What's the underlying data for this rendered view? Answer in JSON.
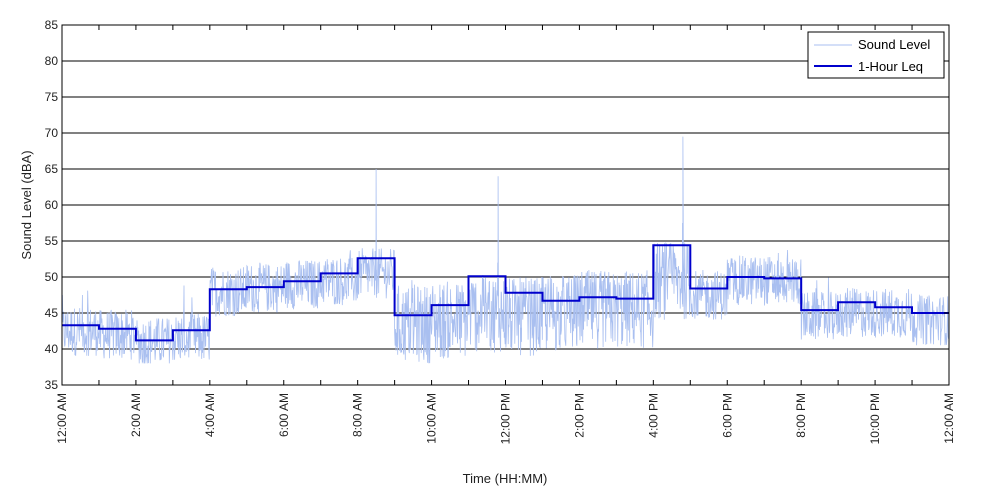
{
  "chart_data": {
    "type": "line",
    "title": "",
    "xlabel": "Time (HH:MM)",
    "ylabel": "Sound Level (dBA)",
    "ylim": [
      35,
      85
    ],
    "xlim_hours": [
      0,
      24
    ],
    "yticks": [
      35,
      40,
      45,
      50,
      55,
      60,
      65,
      70,
      75,
      80,
      85
    ],
    "xtick_labels": [
      "12:00 AM",
      "2:00 AM",
      "4:00 AM",
      "6:00 AM",
      "8:00 AM",
      "10:00 AM",
      "12:00 PM",
      "2:00 PM",
      "4:00 PM",
      "6:00 PM",
      "8:00 PM",
      "10:00 PM",
      "12:00 AM"
    ],
    "grid": "horizontal",
    "legend": "top-right",
    "series": [
      {
        "name": "Sound Level",
        "style": "noisy-line",
        "color": "#a9bff0",
        "hourly_typical": [
          42.5,
          42,
          41,
          41.5,
          48,
          48.5,
          49,
          49.5,
          50.5,
          43.5,
          44,
          45,
          44.5,
          45,
          45.5,
          45.5,
          49.5,
          47.5,
          49.5,
          49.5,
          44.5,
          45,
          45,
          44
        ],
        "spikes": [
          {
            "x_hours": 8.5,
            "y": 65
          },
          {
            "x_hours": 11.8,
            "y": 64
          },
          {
            "x_hours": 16.8,
            "y": 69.5
          }
        ]
      },
      {
        "name": "1-Hour Leq",
        "style": "step",
        "color": "#0000cc",
        "values": [
          43.3,
          42.8,
          41.2,
          42.6,
          48.3,
          48.6,
          49.4,
          50.5,
          52.6,
          44.7,
          46.1,
          50.1,
          47.8,
          46.7,
          47.2,
          47.0,
          54.4,
          48.4,
          50.0,
          49.8,
          45.4,
          46.5,
          45.8,
          45.0
        ]
      }
    ]
  }
}
